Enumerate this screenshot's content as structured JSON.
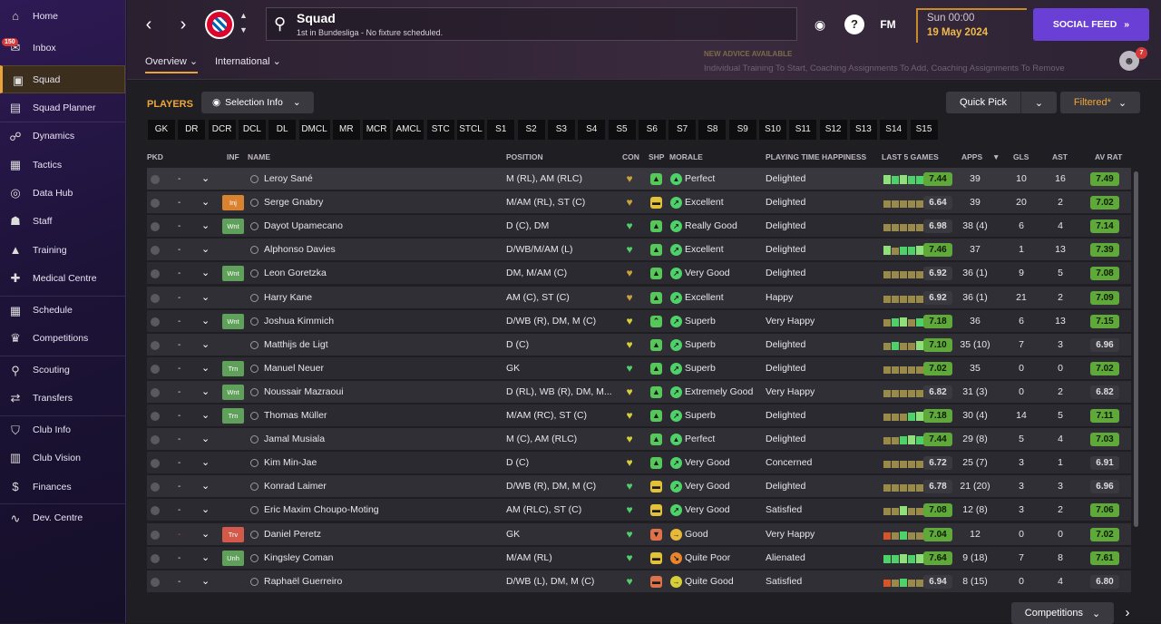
{
  "sidebar": {
    "items": [
      {
        "label": "Home",
        "icon": "home-icon",
        "glyph": "⌂",
        "badge": ""
      },
      {
        "label": "Inbox",
        "icon": "inbox-icon",
        "glyph": "✉",
        "badge": "150"
      },
      {
        "label": "Squad",
        "icon": "shirt-icon",
        "glyph": "▣",
        "badge": "",
        "active": true
      },
      {
        "label": "Squad Planner",
        "icon": "clipboard-icon",
        "glyph": "▤",
        "badge": ""
      },
      {
        "label": "Dynamics",
        "icon": "people-icon",
        "glyph": "☍",
        "badge": ""
      },
      {
        "label": "Tactics",
        "icon": "tactics-board-icon",
        "glyph": "▦",
        "badge": ""
      },
      {
        "label": "Data Hub",
        "icon": "data-hub-icon",
        "glyph": "◎",
        "badge": ""
      },
      {
        "label": "Staff",
        "icon": "staff-icon",
        "glyph": "☗",
        "badge": ""
      },
      {
        "label": "Training",
        "icon": "training-cone-icon",
        "glyph": "▲",
        "badge": ""
      },
      {
        "label": "Medical Centre",
        "icon": "medical-icon",
        "glyph": "✚",
        "badge": ""
      },
      {
        "label": "Schedule",
        "icon": "calendar-icon",
        "glyph": "▦",
        "badge": ""
      },
      {
        "label": "Competitions",
        "icon": "trophy-icon",
        "glyph": "♛",
        "badge": ""
      },
      {
        "label": "Scouting",
        "icon": "magnifier-icon",
        "glyph": "⚲",
        "badge": ""
      },
      {
        "label": "Transfers",
        "icon": "transfer-arrows-icon",
        "glyph": "⇄",
        "badge": ""
      },
      {
        "label": "Club Info",
        "icon": "shield-icon",
        "glyph": "⛉",
        "badge": ""
      },
      {
        "label": "Club Vision",
        "icon": "briefcase-icon",
        "glyph": "▥",
        "badge": ""
      },
      {
        "label": "Finances",
        "icon": "money-icon",
        "glyph": "$",
        "badge": ""
      },
      {
        "label": "Dev. Centre",
        "icon": "trend-line-icon",
        "glyph": "∿",
        "badge": ""
      }
    ]
  },
  "header": {
    "title": "Squad",
    "subtitle": "1st in Bundesliga - No fixture scheduled.",
    "time": "Sun 00:00",
    "date": "19 May 2024",
    "social_feed": "SOCIAL FEED",
    "fm_label": "FM",
    "help_label": "?",
    "advisor_count": "7",
    "tabs": [
      {
        "label": "Overview"
      },
      {
        "label": "International"
      }
    ],
    "advice_title": "NEW ADVICE AVAILABLE",
    "advice_text": "Individual Training To Start, Coaching Assignments To Add, Coaching Assignments To Remove"
  },
  "toolbar": {
    "players_label": "PLAYERS",
    "selection_info": "Selection Info",
    "quick_pick": "Quick Pick",
    "filtered": "Filtered*",
    "competitions": "Competitions"
  },
  "positions": [
    "GK",
    "DR",
    "DCR",
    "DCL",
    "DL",
    "DMCL",
    "MR",
    "MCR",
    "AMCL",
    "STC",
    "STCL",
    "S1",
    "S2",
    "S3",
    "S4",
    "S5",
    "S6",
    "S7",
    "S8",
    "S9",
    "S10",
    "S11",
    "S12",
    "S13",
    "S14",
    "S15"
  ],
  "columns": {
    "pkd": "PKD",
    "inf": "INF",
    "name": "NAME",
    "position": "POSITION",
    "con": "CON",
    "shp": "SHP",
    "morale": "MORALE",
    "pth": "PLAYING TIME HAPPINESS",
    "last5": "LAST 5 GAMES",
    "apps": "APPS",
    "gls": "GLS",
    "ast": "AST",
    "avrat": "AV RAT"
  },
  "colors": {
    "accent": "#f0a73a",
    "social": "#6a3fd6",
    "rating_green": "#5fa83a"
  },
  "players": [
    {
      "pkd": "-",
      "inf": "",
      "name": "Leroy Sané",
      "position": "M (RL), AM (RLC)",
      "con": "gold",
      "shp": "green",
      "shp_glyph": "▲",
      "morale": "Perfect",
      "mor": "green",
      "mor_glyph": "▲",
      "pth": "Delighted",
      "last5": "7.44",
      "last5_green": true,
      "bars": [
        "gl",
        "g",
        "gl",
        "g",
        "g"
      ],
      "apps": "39",
      "gls": "10",
      "ast": "16",
      "avrat": "7.49",
      "av_green": true
    },
    {
      "pkd": "-",
      "inf": "Inj",
      "name": "Serge Gnabry",
      "position": "M/AM (RL), ST (C)",
      "con": "gold",
      "shp": "yellow",
      "shp_glyph": "▬",
      "morale": "Excellent",
      "mor": "green",
      "mor_glyph": "↗",
      "pth": "Delighted",
      "last5": "6.64",
      "last5_green": false,
      "bars": [
        "o",
        "o",
        "o",
        "o",
        "o"
      ],
      "apps": "39",
      "gls": "20",
      "ast": "2",
      "avrat": "7.02",
      "av_green": true
    },
    {
      "pkd": "-",
      "inf": "Wnt",
      "name": "Dayot Upamecano",
      "position": "D (C), DM",
      "con": "green",
      "shp": "green",
      "shp_glyph": "▲",
      "morale": "Really Good",
      "mor": "green",
      "mor_glyph": "↗",
      "pth": "Delighted",
      "last5": "6.98",
      "last5_green": false,
      "bars": [
        "o",
        "o",
        "o",
        "o",
        "o"
      ],
      "apps": "38 (4)",
      "gls": "6",
      "ast": "4",
      "avrat": "7.14",
      "av_green": true
    },
    {
      "pkd": "-",
      "inf": "",
      "name": "Alphonso Davies",
      "position": "D/WB/M/AM (L)",
      "con": "green",
      "shp": "green",
      "shp_glyph": "▲",
      "morale": "Excellent",
      "mor": "green",
      "mor_glyph": "↗",
      "pth": "Delighted",
      "last5": "7.46",
      "last5_green": true,
      "bars": [
        "gl",
        "o",
        "g",
        "g",
        "gl"
      ],
      "apps": "37",
      "gls": "1",
      "ast": "13",
      "avrat": "7.39",
      "av_green": true
    },
    {
      "pkd": "-",
      "inf": "Wnt",
      "name": "Leon Goretzka",
      "position": "DM, M/AM (C)",
      "con": "gold",
      "shp": "green",
      "shp_glyph": "▲",
      "morale": "Very Good",
      "mor": "green",
      "mor_glyph": "↗",
      "pth": "Delighted",
      "last5": "6.92",
      "last5_green": false,
      "bars": [
        "o",
        "o",
        "o",
        "o",
        "o"
      ],
      "apps": "36 (1)",
      "gls": "9",
      "ast": "5",
      "avrat": "7.08",
      "av_green": true
    },
    {
      "pkd": "-",
      "inf": "",
      "name": "Harry Kane",
      "position": "AM (C), ST (C)",
      "con": "gold",
      "shp": "green",
      "shp_glyph": "▲",
      "morale": "Excellent",
      "mor": "green",
      "mor_glyph": "↗",
      "pth": "Happy",
      "last5": "6.92",
      "last5_green": false,
      "bars": [
        "o",
        "o",
        "o",
        "o",
        "o"
      ],
      "apps": "36 (1)",
      "gls": "21",
      "ast": "2",
      "avrat": "7.09",
      "av_green": true
    },
    {
      "pkd": "-",
      "inf": "Wnt",
      "name": "Joshua Kimmich",
      "position": "D/WB (R), DM, M (C)",
      "con": "yellow",
      "shp": "green",
      "shp_glyph": "⌃",
      "morale": "Superb",
      "mor": "green",
      "mor_glyph": "↗",
      "pth": "Very Happy",
      "last5": "7.18",
      "last5_green": true,
      "bars": [
        "o",
        "g",
        "gl",
        "o",
        "g"
      ],
      "apps": "36",
      "gls": "6",
      "ast": "13",
      "avrat": "7.15",
      "av_green": true
    },
    {
      "pkd": "-",
      "inf": "",
      "name": "Matthijs de Ligt",
      "position": "D (C)",
      "con": "yellow",
      "shp": "green",
      "shp_glyph": "▲",
      "morale": "Superb",
      "mor": "green",
      "mor_glyph": "↗",
      "pth": "Delighted",
      "last5": "7.10",
      "last5_green": true,
      "bars": [
        "o",
        "g",
        "o",
        "o",
        "gl"
      ],
      "apps": "35 (10)",
      "gls": "7",
      "ast": "3",
      "avrat": "6.96",
      "av_green": false
    },
    {
      "pkd": "-",
      "inf": "Trn",
      "name": "Manuel Neuer",
      "position": "GK",
      "con": "green",
      "shp": "green",
      "shp_glyph": "▲",
      "morale": "Superb",
      "mor": "green",
      "mor_glyph": "↗",
      "pth": "Delighted",
      "last5": "7.02",
      "last5_green": true,
      "bars": [
        "o",
        "o",
        "o",
        "o",
        "o"
      ],
      "apps": "35",
      "gls": "0",
      "ast": "0",
      "avrat": "7.02",
      "av_green": true
    },
    {
      "pkd": "-",
      "inf": "Wnt",
      "name": "Noussair Mazraoui",
      "position": "D (RL), WB (R), DM, M...",
      "con": "yellow",
      "shp": "green",
      "shp_glyph": "▲",
      "morale": "Extremely Good",
      "mor": "green",
      "mor_glyph": "↗",
      "pth": "Very Happy",
      "last5": "6.82",
      "last5_green": false,
      "bars": [
        "o",
        "o",
        "o",
        "o",
        "o"
      ],
      "apps": "31 (3)",
      "gls": "0",
      "ast": "2",
      "avrat": "6.82",
      "av_green": false
    },
    {
      "pkd": "-",
      "inf": "Trn",
      "name": "Thomas Müller",
      "position": "M/AM (RC), ST (C)",
      "con": "yellow",
      "shp": "green",
      "shp_glyph": "▲",
      "morale": "Superb",
      "mor": "green",
      "mor_glyph": "↗",
      "pth": "Delighted",
      "last5": "7.18",
      "last5_green": true,
      "bars": [
        "o",
        "o",
        "o",
        "g",
        "gl"
      ],
      "apps": "30 (4)",
      "gls": "14",
      "ast": "5",
      "avrat": "7.11",
      "av_green": true
    },
    {
      "pkd": "-",
      "inf": "",
      "name": "Jamal Musiala",
      "position": "M (C), AM (RLC)",
      "con": "yellow",
      "shp": "green",
      "shp_glyph": "▲",
      "morale": "Perfect",
      "mor": "green",
      "mor_glyph": "▲",
      "pth": "Delighted",
      "last5": "7.44",
      "last5_green": true,
      "bars": [
        "o",
        "o",
        "g",
        "gl",
        "g"
      ],
      "apps": "29 (8)",
      "gls": "5",
      "ast": "4",
      "avrat": "7.03",
      "av_green": true
    },
    {
      "pkd": "-",
      "inf": "",
      "name": "Kim Min-Jae",
      "position": "D (C)",
      "con": "yellow",
      "shp": "green",
      "shp_glyph": "▲",
      "morale": "Very Good",
      "mor": "green",
      "mor_glyph": "↗",
      "pth": "Concerned",
      "last5": "6.72",
      "last5_green": false,
      "bars": [
        "o",
        "o",
        "o",
        "o",
        "o"
      ],
      "apps": "25 (7)",
      "gls": "3",
      "ast": "1",
      "avrat": "6.91",
      "av_green": false
    },
    {
      "pkd": "-",
      "inf": "",
      "name": "Konrad Laimer",
      "position": "D/WB (R), DM, M (C)",
      "con": "green",
      "shp": "yellow",
      "shp_glyph": "▬",
      "morale": "Very Good",
      "mor": "green",
      "mor_glyph": "↗",
      "pth": "Delighted",
      "last5": "6.78",
      "last5_green": false,
      "bars": [
        "o",
        "o",
        "o",
        "o",
        "o"
      ],
      "apps": "21 (20)",
      "gls": "3",
      "ast": "3",
      "avrat": "6.96",
      "av_green": false
    },
    {
      "pkd": "-",
      "inf": "",
      "name": "Eric Maxim Choupo-Moting",
      "position": "AM (RLC), ST (C)",
      "con": "green",
      "shp": "yellow",
      "shp_glyph": "▬",
      "morale": "Very Good",
      "mor": "green",
      "mor_glyph": "↗",
      "pth": "Satisfied",
      "last5": "7.08",
      "last5_green": true,
      "bars": [
        "o",
        "o",
        "gl",
        "o",
        "o"
      ],
      "apps": "12 (8)",
      "gls": "3",
      "ast": "2",
      "avrat": "7.06",
      "av_green": true
    },
    {
      "pkd": "-",
      "inf": "Trv",
      "name": "Daniel Peretz",
      "position": "GK",
      "con": "green",
      "shp": "red",
      "shp_glyph": "▼",
      "morale": "Good",
      "mor": "amber",
      "mor_glyph": "→",
      "pth": "Very Happy",
      "last5": "7.04",
      "last5_green": true,
      "bars": [
        "r",
        "o",
        "g",
        "o",
        "o"
      ],
      "apps": "12",
      "gls": "0",
      "ast": "0",
      "avrat": "7.02",
      "av_green": true
    },
    {
      "pkd": "-",
      "inf": "Unh",
      "name": "Kingsley Coman",
      "position": "M/AM (RL)",
      "con": "green",
      "shp": "yellow",
      "shp_glyph": "▬",
      "morale": "Quite Poor",
      "mor": "orange",
      "mor_glyph": "↘",
      "pth": "Alienated",
      "last5": "7.64",
      "last5_green": true,
      "bars": [
        "g",
        "g",
        "gl",
        "g",
        "gl"
      ],
      "apps": "9 (18)",
      "gls": "7",
      "ast": "8",
      "avrat": "7.61",
      "av_green": true
    },
    {
      "pkd": "-",
      "inf": "",
      "name": "Raphaël Guerreiro",
      "position": "D/WB (L), DM, M (C)",
      "con": "green",
      "shp": "red",
      "shp_glyph": "▬",
      "morale": "Quite Good",
      "mor": "yellow",
      "mor_glyph": "→",
      "pth": "Satisfied",
      "last5": "6.94",
      "last5_green": false,
      "bars": [
        "r",
        "o",
        "g",
        "o",
        "o"
      ],
      "apps": "8 (15)",
      "gls": "0",
      "ast": "4",
      "avrat": "6.80",
      "av_green": false
    }
  ]
}
